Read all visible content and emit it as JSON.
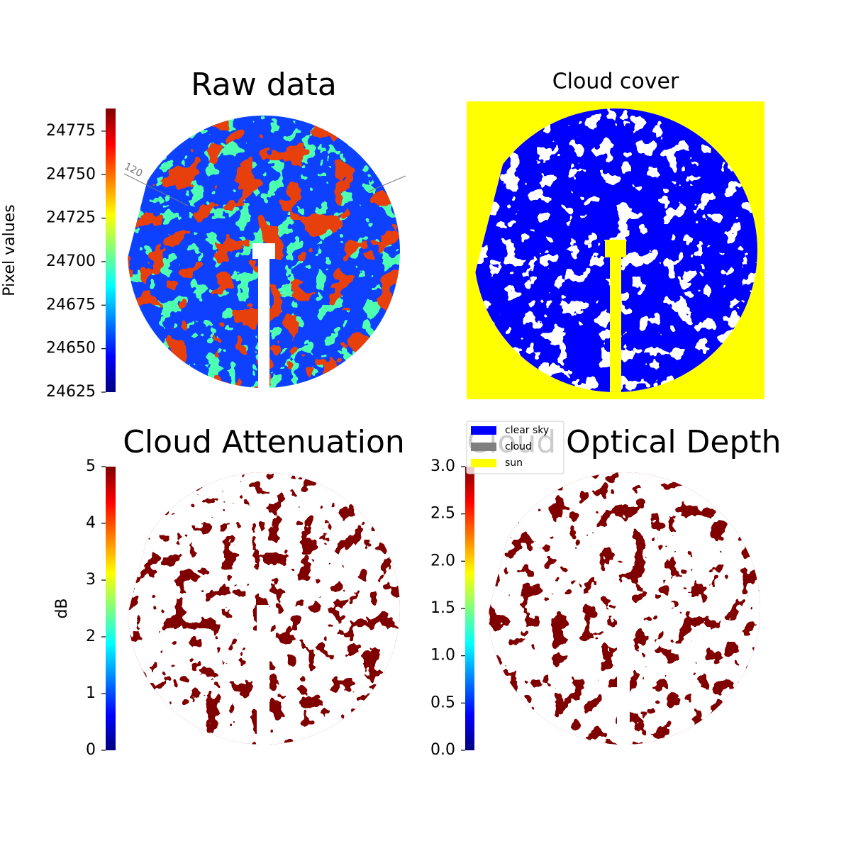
{
  "chart_data": [
    {
      "type": "image",
      "title": "Raw data",
      "colorbar_label": "Pixel values",
      "colormap": "jet",
      "ylim": [
        24625,
        24788
      ],
      "yticks": [
        24625,
        24650,
        24675,
        24700,
        24725,
        24750,
        24775
      ],
      "annotations": [
        "120"
      ]
    },
    {
      "type": "image",
      "title": "Cloud cover",
      "legend": [
        {
          "name": "clear sky",
          "color": "#0000ff"
        },
        {
          "name": "cloud",
          "color": "#808080"
        },
        {
          "name": "sun",
          "color": "#ffff00"
        }
      ]
    },
    {
      "type": "image",
      "title": "Cloud Attenuation",
      "colorbar_label": "dB",
      "colormap": "jet",
      "ylim": [
        0,
        5
      ],
      "yticks": [
        0,
        1,
        2,
        3,
        4,
        5
      ]
    },
    {
      "type": "image",
      "title": "Cloud Optical Depth",
      "colormap": "jet",
      "ylim": [
        0,
        3
      ],
      "yticks": [
        {
          "value": 0,
          "label": "0.0"
        },
        {
          "value": 0.5,
          "label": "0.5"
        },
        {
          "value": 1,
          "label": "1.0"
        },
        {
          "value": 1.5,
          "label": "1.5"
        },
        {
          "value": 2,
          "label": "2.0"
        },
        {
          "value": 2.5,
          "label": "2.5"
        },
        {
          "value": 3,
          "label": "3.0"
        }
      ]
    }
  ]
}
